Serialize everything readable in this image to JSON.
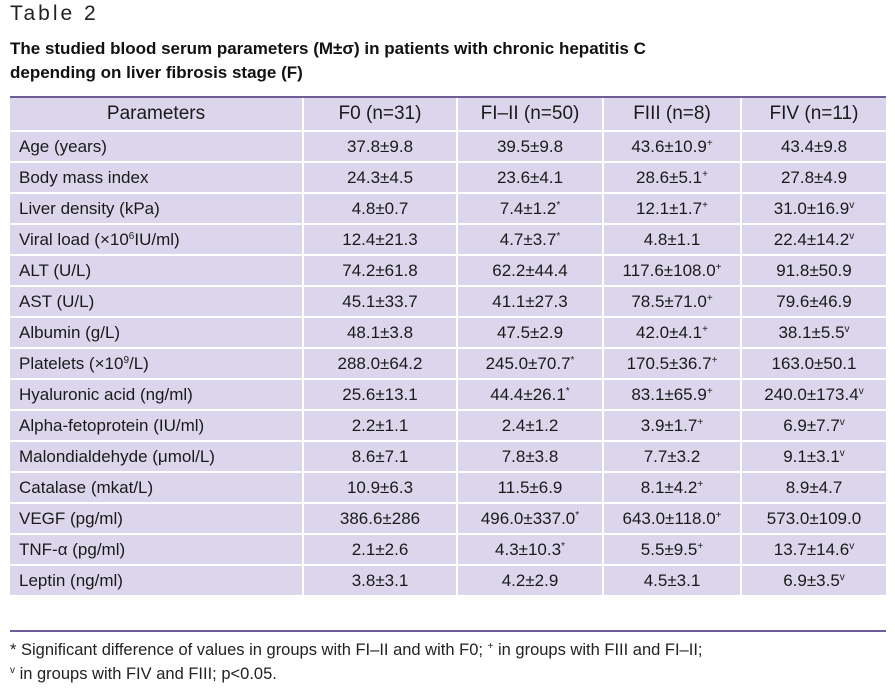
{
  "table_label": "Table 2",
  "caption_line1": "The studied blood serum parameters (M±σ) in patients with chronic hepatitis C",
  "caption_line2": "depending on liver fibrosis stage (F)",
  "headers": [
    "Parameters",
    "F0 (n=31)",
    "FI–II (n=50)",
    "FIII (n=8)",
    "FIV (n=11)"
  ],
  "rows": [
    {
      "param": [
        "Age (years)"
      ],
      "f0": [
        "37.8±9.8",
        ""
      ],
      "f12": [
        "39.5±9.8",
        ""
      ],
      "f3": [
        "43.6±10.9",
        "+"
      ],
      "f4": [
        "43.4±9.8",
        ""
      ]
    },
    {
      "param": [
        "Body mass index"
      ],
      "f0": [
        "24.3±4.5",
        ""
      ],
      "f12": [
        "23.6±4.1",
        ""
      ],
      "f3": [
        "28.6±5.1",
        "+"
      ],
      "f4": [
        "27.8±4.9",
        ""
      ]
    },
    {
      "param": [
        "Liver density (kPa)"
      ],
      "f0": [
        "4.8±0.7",
        ""
      ],
      "f12": [
        "7.4±1.2",
        "*"
      ],
      "f3": [
        "12.1±1.7",
        "+"
      ],
      "f4": [
        "31.0±16.9",
        "v"
      ]
    },
    {
      "param": [
        "Viral load (×10",
        "6",
        "IU/ml)"
      ],
      "f0": [
        "12.4±21.3",
        ""
      ],
      "f12": [
        "4.7±3.7",
        "*"
      ],
      "f3": [
        "4.8±1.1",
        ""
      ],
      "f4": [
        "22.4±14.2",
        "v"
      ]
    },
    {
      "param": [
        "ALT (U/L)"
      ],
      "f0": [
        "74.2±61.8",
        ""
      ],
      "f12": [
        "62.2±44.4",
        ""
      ],
      "f3": [
        "117.6±108.0",
        "+"
      ],
      "f4": [
        "91.8±50.9",
        ""
      ]
    },
    {
      "param": [
        "AST (U/L)"
      ],
      "f0": [
        "45.1±33.7",
        ""
      ],
      "f12": [
        "41.1±27.3",
        ""
      ],
      "f3": [
        "78.5±71.0",
        "+"
      ],
      "f4": [
        "79.6±46.9",
        ""
      ]
    },
    {
      "param": [
        "Albumin (g/L)"
      ],
      "f0": [
        "48.1±3.8",
        ""
      ],
      "f12": [
        "47.5±2.9",
        ""
      ],
      "f3": [
        "42.0±4.1",
        "+"
      ],
      "f4": [
        "38.1±5.5",
        "v"
      ]
    },
    {
      "param": [
        "Platelets (×10",
        "9",
        "/L)"
      ],
      "f0": [
        "288.0±64.2",
        ""
      ],
      "f12": [
        "245.0±70.7",
        "*"
      ],
      "f3": [
        "170.5±36.7",
        "+"
      ],
      "f4": [
        "163.0±50.1",
        ""
      ]
    },
    {
      "param": [
        "Hyaluronic acid (ng/ml)"
      ],
      "f0": [
        "25.6±13.1",
        ""
      ],
      "f12": [
        "44.4±26.1",
        "*"
      ],
      "f3": [
        "83.1±65.9",
        "+"
      ],
      "f4": [
        "240.0±173.4",
        "v"
      ]
    },
    {
      "param": [
        "Alpha-fetoprotein (IU/ml)"
      ],
      "f0": [
        "2.2±1.1",
        ""
      ],
      "f12": [
        "2.4±1.2",
        ""
      ],
      "f3": [
        "3.9±1.7",
        "+"
      ],
      "f4": [
        "6.9±7.7",
        "v"
      ]
    },
    {
      "param": [
        "Malondialdehyde (μmol/L)"
      ],
      "f0": [
        "8.6±7.1",
        ""
      ],
      "f12": [
        "7.8±3.8",
        ""
      ],
      "f3": [
        "7.7±3.2",
        ""
      ],
      "f4": [
        "9.1±3.1",
        "v"
      ]
    },
    {
      "param": [
        "Catalase (mkat/L)"
      ],
      "f0": [
        "10.9±6.3",
        ""
      ],
      "f12": [
        "11.5±6.9",
        ""
      ],
      "f3": [
        "8.1±4.2",
        "+"
      ],
      "f4": [
        "8.9±4.7",
        ""
      ]
    },
    {
      "param": [
        "VEGF (pg/ml)"
      ],
      "f0": [
        "386.6±286",
        ""
      ],
      "f12": [
        "496.0±337.0",
        "*"
      ],
      "f3": [
        "643.0±118.0",
        "+"
      ],
      "f4": [
        "573.0±109.0",
        ""
      ]
    },
    {
      "param": [
        "TNF-α (pg/ml)"
      ],
      "f0": [
        "2.1±2.6",
        ""
      ],
      "f12": [
        "4.3±10.3",
        "*"
      ],
      "f3": [
        "5.5±9.5",
        "+"
      ],
      "f4": [
        "13.7±14.6",
        "v"
      ]
    },
    {
      "param": [
        "Leptin (ng/ml)"
      ],
      "f0": [
        "3.8±3.1",
        ""
      ],
      "f12": [
        "4.2±2.9",
        ""
      ],
      "f3": [
        "4.5±3.1",
        ""
      ],
      "f4": [
        "6.9±3.5",
        "v"
      ]
    }
  ],
  "footnote": {
    "line1_a": "* Significant difference of values in groups with FI–II and with F0; ",
    "line1_sup": "+",
    "line1_b": " in groups with FIII and FI–II;",
    "line2_sup": "v",
    "line2_b": " in groups with FIV and FIII; p<0.05."
  }
}
